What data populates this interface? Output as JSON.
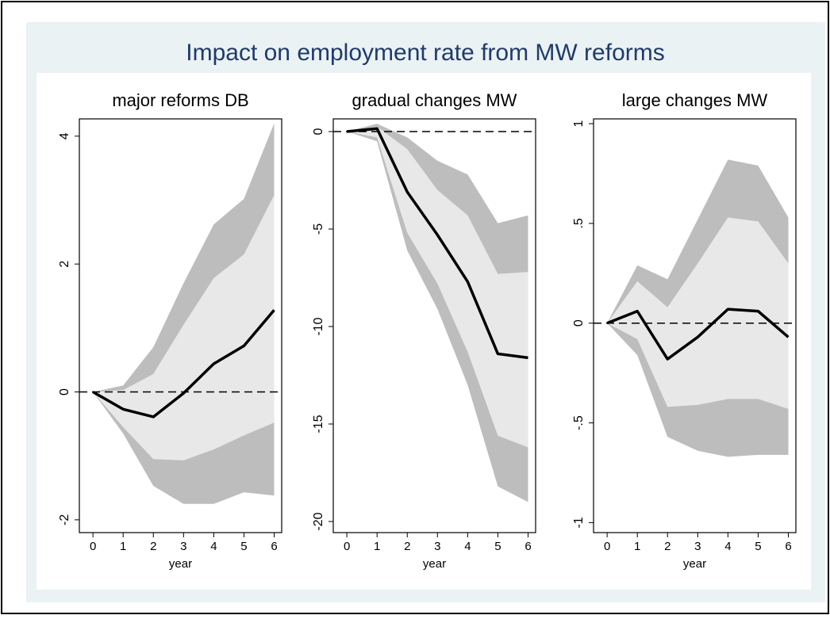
{
  "title": "Impact on employment rate from MW reforms",
  "chart_data": [
    {
      "type": "line-band",
      "title": "major reforms DB",
      "xlabel": "year",
      "x": [
        0,
        1,
        2,
        3,
        4,
        5,
        6
      ],
      "xlim": [
        -0.45,
        6.25
      ],
      "xticks": [
        0,
        1,
        2,
        3,
        4,
        5,
        6
      ],
      "ylim": [
        -2.2,
        4.27
      ],
      "yticks": [
        -2,
        0,
        2,
        4
      ],
      "refline": 0,
      "line": {
        "color": "#000000",
        "values": [
          0,
          -0.27,
          -0.39,
          -0.02,
          0.44,
          0.72,
          1.28
        ]
      },
      "bands": [
        {
          "color": "#bdbdbd",
          "upper": [
            0,
            0.1,
            0.7,
            1.7,
            2.62,
            3.02,
            4.2
          ],
          "lower": [
            0,
            -0.65,
            -1.47,
            -1.75,
            -1.75,
            -1.57,
            -1.62
          ]
        },
        {
          "color": "#e8e8e8",
          "upper": [
            0,
            0.03,
            0.28,
            1.05,
            1.78,
            2.15,
            3.08
          ],
          "lower": [
            0,
            -0.55,
            -1.05,
            -1.07,
            -0.9,
            -0.68,
            -0.48
          ]
        }
      ]
    },
    {
      "type": "line-band",
      "title": "gradual changes MW",
      "xlabel": "year",
      "x": [
        0,
        1,
        2,
        3,
        4,
        5,
        6
      ],
      "xlim": [
        -0.45,
        6.25
      ],
      "xticks": [
        0,
        1,
        2,
        3,
        4,
        5,
        6
      ],
      "ylim": [
        -20.57,
        0.65
      ],
      "yticks": [
        -20,
        -15,
        -10,
        -5,
        0
      ],
      "refline": 0,
      "line": {
        "color": "#000000",
        "values": [
          0,
          0.15,
          -3.1,
          -5.3,
          -7.7,
          -11.4,
          -11.6
        ]
      },
      "bands": [
        {
          "color": "#bdbdbd",
          "upper": [
            0,
            0.4,
            -0.3,
            -1.5,
            -2.2,
            -4.7,
            -4.3
          ],
          "lower": [
            0,
            -0.5,
            -6.1,
            -9.1,
            -13,
            -18.2,
            -19
          ]
        },
        {
          "color": "#e8e8e8",
          "upper": [
            0,
            0.25,
            -0.9,
            -3,
            -4.3,
            -7.3,
            -7.2
          ],
          "lower": [
            0,
            -0.3,
            -5.2,
            -7.8,
            -11.3,
            -15.6,
            -16.2
          ]
        }
      ]
    },
    {
      "type": "line-band",
      "title": "large changes MW",
      "xlabel": "year",
      "x": [
        0,
        1,
        2,
        3,
        4,
        5,
        6
      ],
      "xlim": [
        -0.45,
        6.25
      ],
      "xticks": [
        0,
        1,
        2,
        3,
        4,
        5,
        6
      ],
      "ylim": [
        -1.05,
        1.024
      ],
      "yticks": [
        -1,
        {
          "value": -0.5,
          "label": "-.5"
        },
        0,
        {
          "value": 0.5,
          "label": ".5"
        },
        1
      ],
      "refline": 0,
      "line": {
        "color": "#000000",
        "values": [
          0,
          0.06,
          -0.18,
          -0.07,
          0.07,
          0.06,
          -0.07
        ]
      },
      "bands": [
        {
          "color": "#bdbdbd",
          "upper": [
            0,
            0.29,
            0.22,
            0.52,
            0.82,
            0.79,
            0.53
          ],
          "lower": [
            0,
            -0.16,
            -0.57,
            -0.64,
            -0.67,
            -0.66,
            -0.66
          ]
        },
        {
          "color": "#e8e8e8",
          "upper": [
            0,
            0.21,
            0.08,
            0.3,
            0.53,
            0.51,
            0.3
          ],
          "lower": [
            0,
            -0.08,
            -0.42,
            -0.41,
            -0.38,
            -0.38,
            -0.43
          ]
        }
      ]
    }
  ]
}
